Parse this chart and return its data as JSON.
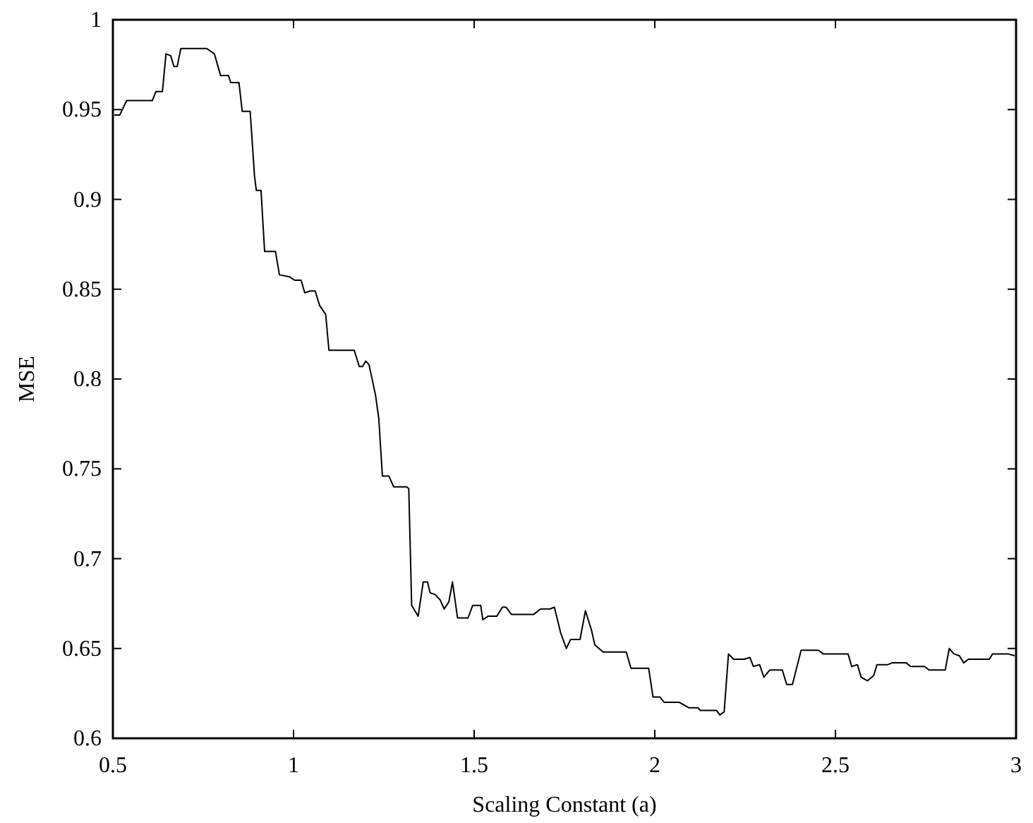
{
  "chart_data": {
    "type": "line",
    "xlabel": "Scaling Constant (a)",
    "ylabel": "MSE",
    "xlim": [
      0.5,
      3
    ],
    "ylim": [
      0.6,
      1
    ],
    "xticks": [
      0.5,
      1,
      1.5,
      2,
      2.5,
      3
    ],
    "yticks": [
      0.6,
      0.65,
      0.7,
      0.75,
      0.8,
      0.85,
      0.9,
      0.95,
      1
    ],
    "grid": false,
    "marker": "none",
    "line_style": "solid",
    "series": [
      {
        "color": "#000000",
        "x": [
          0.504,
          0.519,
          0.538,
          0.609,
          0.619,
          0.637,
          0.647,
          0.66,
          0.669,
          0.678,
          0.688,
          0.76,
          0.781,
          0.798,
          0.82,
          0.826,
          0.849,
          0.858,
          0.88,
          0.892,
          0.897,
          0.91,
          0.92,
          0.95,
          0.961,
          0.988,
          1.003,
          1.021,
          1.031,
          1.046,
          1.06,
          1.072,
          1.089,
          1.098,
          1.168,
          1.182,
          1.191,
          1.2,
          1.209,
          1.227,
          1.236,
          1.246,
          1.264,
          1.277,
          1.313,
          1.319,
          1.327,
          1.345,
          1.359,
          1.371,
          1.378,
          1.392,
          1.406,
          1.417,
          1.43,
          1.44,
          1.454,
          1.483,
          1.496,
          1.518,
          1.524,
          1.539,
          1.563,
          1.578,
          1.588,
          1.603,
          1.665,
          1.684,
          1.71,
          1.722,
          1.739,
          1.755,
          1.767,
          1.793,
          1.808,
          1.825,
          1.834,
          1.857,
          1.921,
          1.934,
          1.983,
          1.995,
          2.014,
          2.026,
          2.068,
          2.094,
          2.119,
          2.126,
          2.171,
          2.18,
          2.192,
          2.204,
          2.218,
          2.247,
          2.263,
          2.273,
          2.29,
          2.302,
          2.318,
          2.353,
          2.365,
          2.381,
          2.405,
          2.453,
          2.466,
          2.535,
          2.545,
          2.561,
          2.571,
          2.589,
          2.606,
          2.615,
          2.645,
          2.657,
          2.696,
          2.708,
          2.747,
          2.759,
          2.804,
          2.815,
          2.828,
          2.843,
          2.855,
          2.868,
          2.926,
          2.935,
          2.977,
          2.996
        ],
        "values": [
          0.947,
          0.947,
          0.955,
          0.955,
          0.96,
          0.96,
          0.981,
          0.98,
          0.974,
          0.974,
          0.984,
          0.984,
          0.981,
          0.969,
          0.969,
          0.965,
          0.965,
          0.949,
          0.949,
          0.913,
          0.905,
          0.905,
          0.871,
          0.871,
          0.858,
          0.857,
          0.855,
          0.855,
          0.848,
          0.849,
          0.849,
          0.841,
          0.836,
          0.816,
          0.816,
          0.807,
          0.807,
          0.81,
          0.808,
          0.791,
          0.778,
          0.746,
          0.746,
          0.74,
          0.74,
          0.739,
          0.674,
          0.668,
          0.687,
          0.687,
          0.681,
          0.68,
          0.677,
          0.672,
          0.676,
          0.687,
          0.667,
          0.667,
          0.674,
          0.674,
          0.666,
          0.668,
          0.668,
          0.673,
          0.673,
          0.669,
          0.669,
          0.672,
          0.672,
          0.673,
          0.659,
          0.65,
          0.655,
          0.655,
          0.671,
          0.66,
          0.652,
          0.648,
          0.648,
          0.639,
          0.639,
          0.623,
          0.623,
          0.62,
          0.62,
          0.617,
          0.617,
          0.6155,
          0.6155,
          0.613,
          0.6147,
          0.647,
          0.644,
          0.644,
          0.645,
          0.64,
          0.641,
          0.634,
          0.638,
          0.638,
          0.63,
          0.63,
          0.649,
          0.649,
          0.647,
          0.647,
          0.64,
          0.641,
          0.634,
          0.632,
          0.635,
          0.641,
          0.641,
          0.642,
          0.642,
          0.64,
          0.64,
          0.638,
          0.638,
          0.65,
          0.647,
          0.646,
          0.642,
          0.644,
          0.644,
          0.647,
          0.647,
          0.646
        ]
      }
    ]
  }
}
